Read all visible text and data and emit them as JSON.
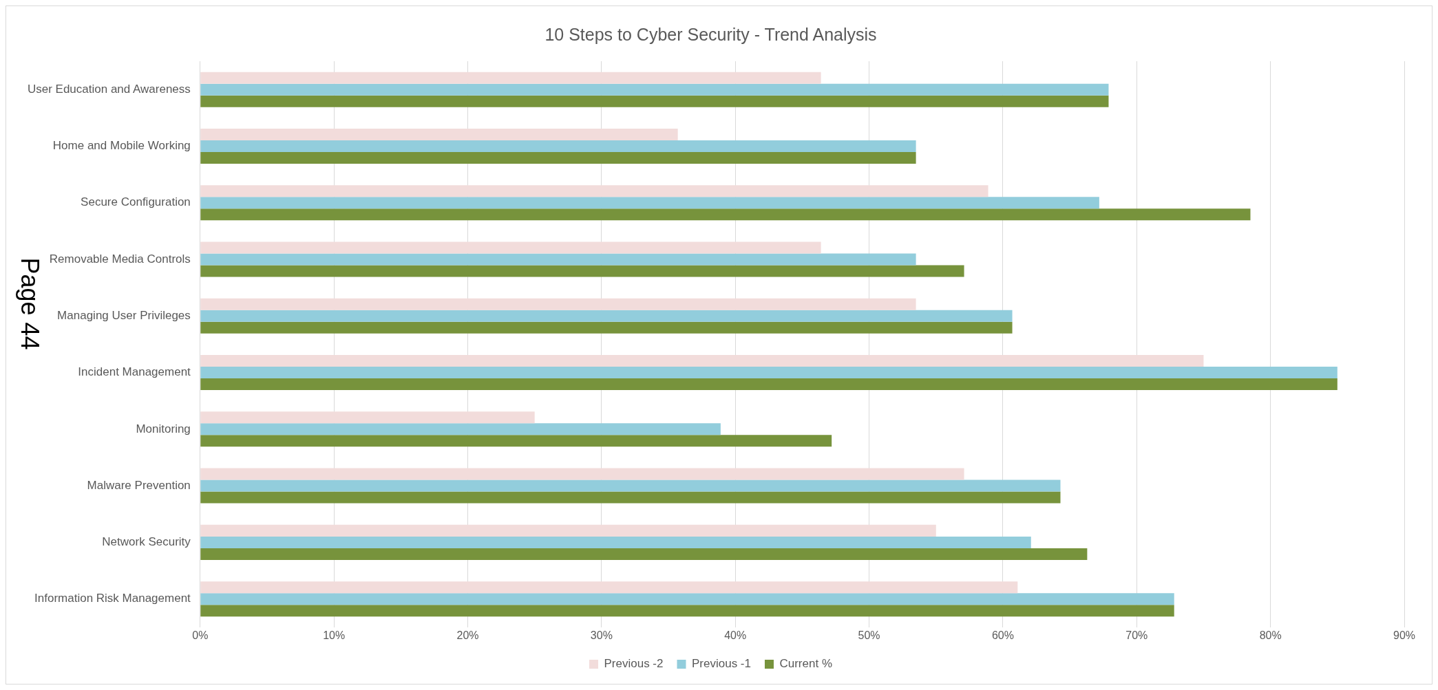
{
  "chart_data": {
    "type": "bar",
    "orientation": "horizontal",
    "title": "10 Steps to Cyber Security - Trend Analysis",
    "categories": [
      "User Education and Awareness",
      "Home and Mobile Working",
      "Secure Configuration",
      "Removable Media Controls",
      "Managing User Privileges",
      "Incident Management",
      "Monitoring",
      "Malware Prevention",
      "Network Security",
      "Information Risk Management"
    ],
    "series": [
      {
        "name": "Previous -2",
        "color": "#f2dcdb",
        "values": [
          46.4,
          35.7,
          58.9,
          46.4,
          53.5,
          75.0,
          25.0,
          57.1,
          55.0,
          61.1
        ]
      },
      {
        "name": "Previous -1",
        "color": "#92cddc",
        "values": [
          67.9,
          53.5,
          67.2,
          53.5,
          60.7,
          85.0,
          38.9,
          64.3,
          62.1,
          72.8
        ]
      },
      {
        "name": "Current %",
        "color": "#77933c",
        "values": [
          67.9,
          53.5,
          78.5,
          57.1,
          60.7,
          85.0,
          47.2,
          64.3,
          66.3,
          72.8
        ]
      }
    ],
    "xlim": [
      0,
      90
    ],
    "xticks": [
      {
        "value": 0,
        "label": "0%"
      },
      {
        "value": 10,
        "label": "10%"
      },
      {
        "value": 20,
        "label": "20%"
      },
      {
        "value": 30,
        "label": "30%"
      },
      {
        "value": 40,
        "label": "40%"
      },
      {
        "value": 50,
        "label": "50%"
      },
      {
        "value": 60,
        "label": "60%"
      },
      {
        "value": 70,
        "label": "70%"
      },
      {
        "value": 80,
        "label": "80%"
      },
      {
        "value": 90,
        "label": "90%"
      }
    ],
    "grid": "x",
    "legend": "bottom",
    "annotations": [
      "Page 44"
    ]
  }
}
